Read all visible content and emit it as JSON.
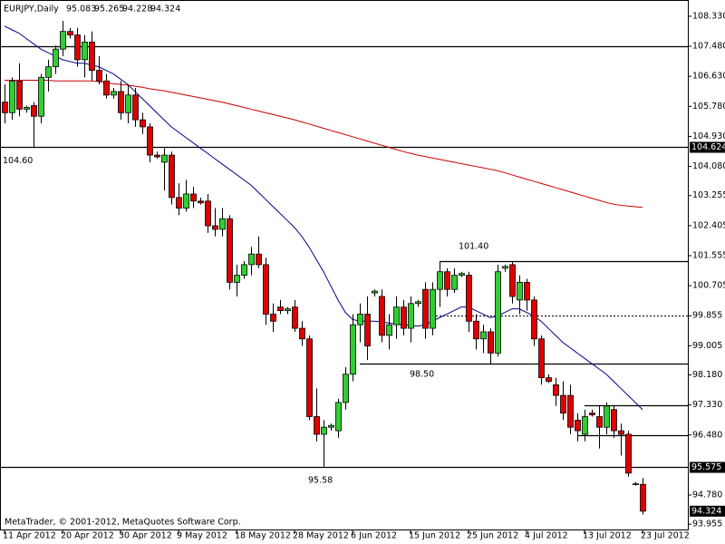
{
  "chart_data": {
    "type": "candlestick",
    "title": "EURJPY,Daily",
    "footer": "MetaTrader, © 2001-2012, MetaQuotes Software Corp.",
    "up_color": "#32cd32",
    "down_color": "#e00000",
    "categories": [
      "11 Apr 2012",
      null,
      null,
      null,
      null,
      null,
      null,
      null,
      "20 Apr 2012",
      null,
      null,
      null,
      null,
      null,
      null,
      null,
      "30 Apr 2012",
      null,
      null,
      null,
      null,
      null,
      null,
      null,
      "9 May 2012",
      null,
      null,
      null,
      null,
      null,
      null,
      null,
      "18 May 2012",
      null,
      null,
      null,
      null,
      null,
      null,
      null,
      "28 May 2012",
      null,
      null,
      null,
      null,
      null,
      null,
      null,
      "6 Jun 2012",
      null,
      null,
      null,
      null,
      null,
      null,
      null,
      "15 Jun 2012",
      null,
      null,
      null,
      null,
      null,
      null,
      null,
      "25 Jun 2012",
      null,
      null,
      null,
      null,
      null,
      null,
      null,
      "4 Jul 2012",
      null,
      null,
      null,
      null,
      null,
      null,
      null,
      "13 Jul 2012",
      null,
      null,
      null,
      null,
      null,
      null,
      null,
      "23 Jul 2012"
    ],
    "open": [
      105.9,
      105.6,
      106.5,
      105.7,
      105.8,
      105.5,
      106.6,
      106.9,
      107.4,
      107.9,
      107.8,
      107.1,
      107.6,
      106.8,
      106.5,
      106.1,
      106.2,
      105.6,
      106.1,
      105.4,
      105.2,
      104.4,
      104.2,
      104.4,
      103.2,
      102.9,
      103.3,
      103.1,
      103.1,
      102.4,
      102.3,
      102.6,
      100.8,
      101.0,
      101.3,
      101.6,
      101.3,
      99.9,
      100.1,
      100.0,
      100.1,
      99.5,
      99.2,
      97.0,
      96.5,
      96.7,
      96.6,
      97.4,
      98.2,
      99.6,
      99.9,
      100.5,
      100.4,
      99.3,
      99.6,
      100.1,
      99.5,
      100.2,
      100.6,
      99.5,
      100.6,
      101.1,
      100.6,
      101.0,
      101.0,
      99.7,
      99.2,
      99.4,
      98.8,
      101.2,
      101.3,
      100.3,
      100.8,
      100.3,
      99.2,
      98.1,
      97.9,
      97.6,
      97.6,
      96.9,
      96.5,
      97.1,
      97.0,
      96.7,
      97.2,
      96.6,
      96.5,
      95.1,
      95.083
    ],
    "high": [
      106.4,
      106.6,
      107.0,
      105.8,
      105.9,
      106.7,
      107.1,
      107.5,
      108.2,
      108.0,
      108.0,
      107.8,
      107.9,
      107.2,
      106.7,
      106.3,
      106.5,
      106.4,
      106.3,
      105.6,
      105.3,
      104.5,
      104.6,
      104.5,
      103.6,
      103.7,
      103.5,
      103.2,
      103.3,
      102.9,
      102.9,
      102.7,
      101.3,
      101.4,
      101.8,
      102.1,
      101.5,
      100.2,
      100.3,
      100.1,
      100.3,
      99.7,
      99.3,
      97.8,
      96.9,
      96.8,
      97.5,
      98.4,
      99.9,
      100.2,
      100.4,
      100.6,
      100.6,
      99.9,
      100.4,
      100.3,
      100.4,
      100.3,
      100.8,
      100.8,
      101.4,
      101.2,
      101.2,
      101.1,
      101.1,
      99.9,
      99.6,
      99.5,
      101.3,
      101.3,
      101.4,
      101.0,
      100.9,
      100.4,
      99.3,
      98.2,
      98.1,
      98.0,
      97.9,
      97.1,
      97.2,
      97.2,
      97.3,
      97.4,
      97.3,
      96.8,
      96.6,
      95.15,
      95.265
    ],
    "low": [
      105.3,
      105.4,
      105.5,
      105.6,
      104.6,
      105.3,
      106.2,
      106.7,
      107.2,
      107.7,
      106.9,
      106.6,
      106.5,
      106.4,
      106.0,
      106.0,
      105.4,
      105.3,
      105.2,
      105.0,
      104.2,
      104.3,
      103.4,
      103.0,
      102.7,
      102.8,
      102.9,
      103.0,
      102.2,
      102.1,
      102.1,
      100.6,
      100.4,
      100.9,
      101.0,
      101.2,
      99.6,
      99.4,
      99.9,
      99.9,
      99.4,
      99.0,
      96.9,
      96.3,
      95.58,
      96.6,
      96.4,
      97.2,
      98.0,
      99.1,
      98.6,
      100.4,
      99.1,
      98.9,
      99.2,
      99.3,
      99.1,
      100.1,
      99.2,
      99.3,
      100.1,
      100.4,
      100.5,
      100.95,
      99.4,
      98.9,
      98.8,
      98.5,
      98.7,
      101.1,
      100.2,
      99.9,
      100.0,
      99.0,
      97.9,
      97.95,
      97.3,
      96.9,
      96.5,
      96.3,
      96.3,
      97.0,
      96.1,
      96.5,
      96.4,
      95.9,
      95.3,
      95.05,
      94.228
    ],
    "close": [
      105.6,
      106.5,
      105.7,
      105.75,
      105.5,
      106.6,
      106.9,
      107.4,
      107.9,
      107.8,
      107.1,
      107.6,
      106.8,
      106.5,
      106.1,
      106.2,
      105.6,
      106.1,
      105.4,
      105.2,
      104.4,
      104.35,
      104.4,
      103.2,
      102.9,
      103.3,
      103.1,
      103.05,
      102.4,
      102.3,
      102.6,
      100.8,
      101.0,
      101.3,
      101.6,
      101.3,
      99.9,
      99.7,
      100.0,
      100.05,
      99.5,
      99.2,
      97.0,
      96.5,
      96.7,
      96.75,
      97.4,
      98.2,
      99.6,
      99.9,
      99.0,
      100.55,
      99.3,
      99.6,
      100.1,
      99.5,
      100.2,
      100.25,
      99.5,
      100.6,
      101.1,
      100.6,
      101.0,
      101.05,
      99.7,
      99.2,
      99.4,
      98.8,
      101.1,
      101.25,
      100.4,
      100.8,
      100.3,
      99.2,
      98.1,
      98.0,
      97.6,
      97.1,
      96.7,
      96.6,
      97.0,
      97.05,
      96.7,
      97.3,
      96.6,
      96.5,
      95.4,
      95.1,
      94.324
    ],
    "lines": [
      {
        "color": "#00008b",
        "values": [
          108.05,
          107.95,
          107.85,
          107.7,
          107.55,
          107.4,
          107.3,
          107.2,
          107.1,
          107.05,
          107.0,
          107.0,
          106.95,
          106.9,
          106.8,
          106.7,
          106.55,
          106.4,
          106.2,
          106.0,
          105.8,
          105.6,
          105.4,
          105.2,
          105.05,
          104.9,
          104.75,
          104.6,
          104.45,
          104.3,
          104.15,
          104.0,
          103.85,
          103.7,
          103.55,
          103.35,
          103.15,
          102.95,
          102.75,
          102.55,
          102.35,
          102.1,
          101.8,
          101.45,
          101.1,
          100.7,
          100.3,
          99.95,
          99.75,
          99.7,
          99.7,
          99.7,
          99.68,
          99.65,
          99.62,
          99.6,
          99.58,
          99.56,
          99.6,
          99.7,
          99.8,
          99.9,
          100.0,
          100.1,
          100.1,
          100.0,
          99.9,
          99.8,
          99.85,
          99.95,
          100.05,
          100.05,
          99.95,
          99.85,
          99.7,
          99.5,
          99.3,
          99.1,
          98.95,
          98.8,
          98.65,
          98.5,
          98.35,
          98.2,
          98.0,
          97.8,
          97.6,
          97.4,
          97.2
        ]
      },
      {
        "color": "#cc0000",
        "values": [
          106.52,
          106.52,
          106.52,
          106.52,
          106.52,
          106.52,
          106.52,
          106.5,
          106.5,
          106.5,
          106.5,
          106.5,
          106.5,
          106.48,
          106.45,
          106.42,
          106.4,
          106.38,
          106.35,
          106.32,
          106.28,
          106.25,
          106.22,
          106.18,
          106.14,
          106.1,
          106.06,
          106.02,
          105.98,
          105.94,
          105.9,
          105.85,
          105.8,
          105.75,
          105.7,
          105.65,
          105.6,
          105.55,
          105.5,
          105.45,
          105.4,
          105.34,
          105.28,
          105.22,
          105.16,
          105.1,
          105.04,
          104.98,
          104.92,
          104.86,
          104.8,
          104.74,
          104.68,
          104.62,
          104.56,
          104.5,
          104.45,
          104.4,
          104.36,
          104.32,
          104.28,
          104.24,
          104.2,
          104.16,
          104.12,
          104.08,
          104.04,
          104.0,
          103.96,
          103.9,
          103.84,
          103.78,
          103.72,
          103.66,
          103.6,
          103.54,
          103.48,
          103.42,
          103.36,
          103.3,
          103.24,
          103.18,
          103.12,
          103.06,
          103.01,
          102.98,
          102.96,
          102.94,
          102.92
        ]
      }
    ],
    "levels": [
      {
        "value": 107.48
      },
      {
        "value": 104.624,
        "tagged": true
      },
      {
        "value": 101.4
      },
      {
        "value": 99.855,
        "dashed": true
      },
      {
        "value": 98.5
      },
      {
        "value": 97.33
      },
      {
        "value": 96.48
      },
      {
        "value": 95.575,
        "tagged": true
      }
    ],
    "annotations": [
      {
        "value": 104.6,
        "label": "104.60"
      },
      {
        "value": 101.4,
        "label": "101.40"
      },
      {
        "value": 98.5,
        "label": "98.50"
      },
      95.58
    ],
    "ylim": [
      93.78,
      108.79
    ],
    "yticks": [
      {
        "value": 108.33,
        "label": "108.330"
      },
      {
        "value": 107.48,
        "label": "107.480"
      },
      {
        "value": 106.63,
        "label": "106.630"
      },
      {
        "value": 105.78,
        "label": "105.780"
      },
      {
        "value": 104.93,
        "label": "104.930"
      },
      {
        "value": 104.08,
        "label": "104.080"
      },
      103.255,
      102.405,
      101.555,
      100.705,
      99.855,
      99.005,
      {
        "value": 98.18,
        "label": "98.180"
      },
      {
        "value": 97.33,
        "label": "97.330"
      },
      {
        "value": 96.48,
        "label": "96.480"
      },
      {
        "value": 94.78,
        "label": "94.780"
      },
      93.955
    ]
  }
}
